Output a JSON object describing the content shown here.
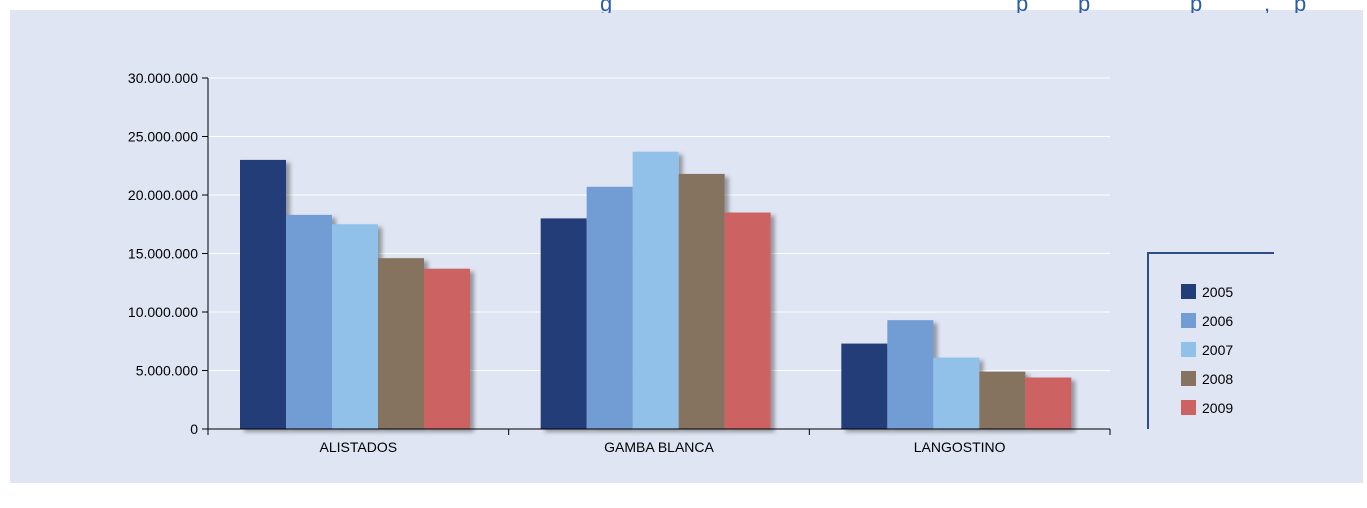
{
  "chart_data": {
    "type": "bar",
    "title": "",
    "xlabel": "",
    "ylabel": "",
    "ylim": [
      0,
      30000000
    ],
    "yticks": [
      0,
      5000000,
      10000000,
      15000000,
      20000000,
      25000000,
      30000000
    ],
    "ytick_labels": [
      "0",
      "5.000.000",
      "10.000.000",
      "15.000.000",
      "20.000.000",
      "25.000.000",
      "30.000.000"
    ],
    "categories": [
      "ALISTADOS",
      "GAMBA BLANCA",
      "LANGOSTINO"
    ],
    "series": [
      {
        "name": "2005",
        "color": "#213e78",
        "values": [
          23000000,
          18000000,
          7300000
        ]
      },
      {
        "name": "2006",
        "color": "#729cd4",
        "values": [
          18300000,
          20700000,
          9300000
        ]
      },
      {
        "name": "2007",
        "color": "#91c1e9",
        "values": [
          17500000,
          23700000,
          6100000
        ]
      },
      {
        "name": "2008",
        "color": "#85735f",
        "values": [
          14600000,
          21800000,
          4900000
        ]
      },
      {
        "name": "2009",
        "color": "#cc6262",
        "values": [
          13700000,
          18500000,
          4400000
        ]
      }
    ],
    "grid": true,
    "legend_position": "right"
  },
  "colors": {
    "panel_background": "#dfe5f3",
    "gridline": "#ffffff",
    "axis": "#000000",
    "legend_frame": "#2c4f8c"
  }
}
